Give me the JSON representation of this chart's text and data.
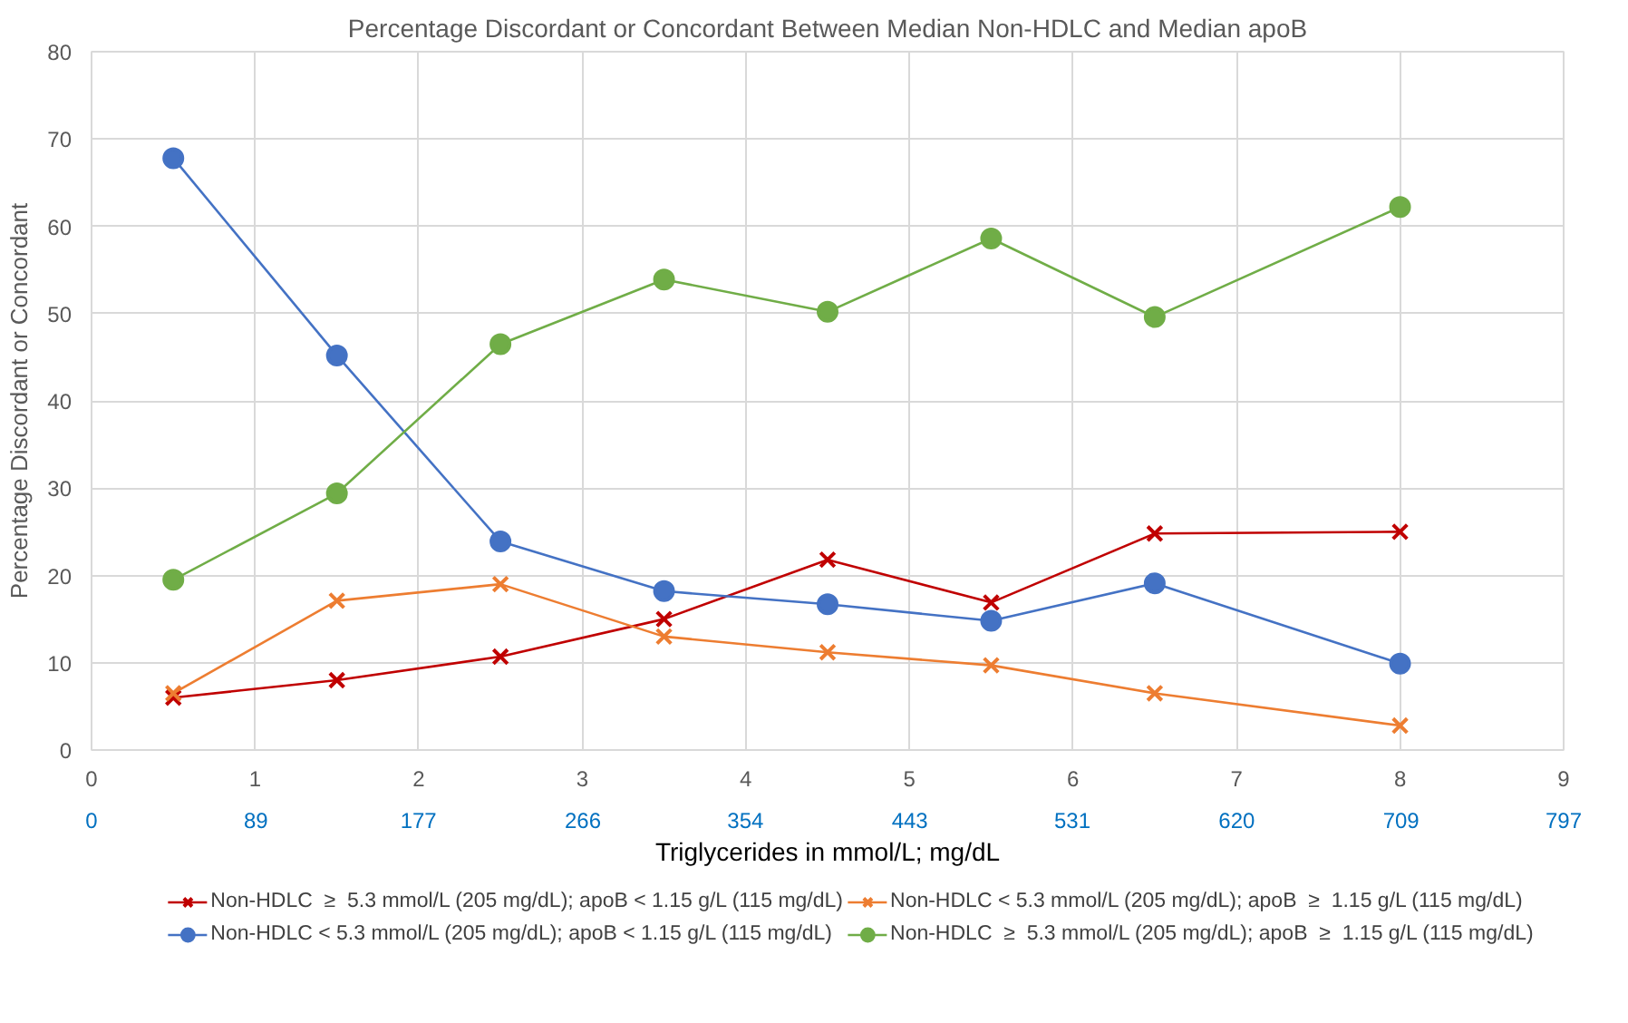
{
  "chart_data": {
    "type": "line",
    "title": "Percentage Discordant or Concordant Between Median Non-HDLC and Median apoB",
    "xlabel": "Triglycerides in mmol/L; mg/dL",
    "ylabel": "Percentage Discordant or Concordant",
    "x": [
      0.5,
      1.5,
      2.5,
      3.5,
      4.5,
      5.5,
      6.5,
      8
    ],
    "series": [
      {
        "name": "Non-HDLC  ≥  5.3 mmol/L (205 mg/dL); apoB < 1.15 g/L (115 mg/dL)",
        "color": "#c00000",
        "marker": "cross",
        "values": [
          6.0,
          8.0,
          10.7,
          15.0,
          21.8,
          16.9,
          24.8,
          25.0
        ]
      },
      {
        "name": "Non-HDLC < 5.3 mmol/L (205 mg/dL); apoB  ≥  1.15 g/L (115 mg/dL)",
        "color": "#ed7d31",
        "marker": "cross",
        "values": [
          6.5,
          17.1,
          19.0,
          13.0,
          11.2,
          9.7,
          6.5,
          2.8
        ]
      },
      {
        "name": "Non-HDLC < 5.3 mmol/L (205 mg/dL); apoB < 1.15 g/L (115 mg/dL)",
        "color": "#4472c4",
        "marker": "circle",
        "values": [
          67.8,
          45.2,
          23.9,
          18.2,
          16.7,
          14.8,
          19.1,
          9.9
        ]
      },
      {
        "name": "Non-HDLC  ≥  5.3 mmol/L (205 mg/dL); apoB  ≥  1.15 g/L (115 mg/dL)",
        "color": "#70ad47",
        "marker": "circle",
        "values": [
          19.5,
          29.4,
          46.5,
          53.9,
          50.2,
          58.6,
          49.6,
          62.2
        ]
      }
    ],
    "xlim": [
      0,
      9
    ],
    "xticks": [
      0,
      1,
      2,
      3,
      4,
      5,
      6,
      7,
      8,
      9
    ],
    "x2lim": [
      0,
      797
    ],
    "x2ticks": [
      0,
      89,
      177,
      266,
      354,
      443,
      531,
      620,
      709,
      797
    ],
    "ylim": [
      0,
      80
    ],
    "yticks": [
      0,
      10,
      20,
      30,
      40,
      50,
      60,
      70,
      80
    ],
    "grid": true,
    "legend": "bottom",
    "line_style": "solid"
  }
}
